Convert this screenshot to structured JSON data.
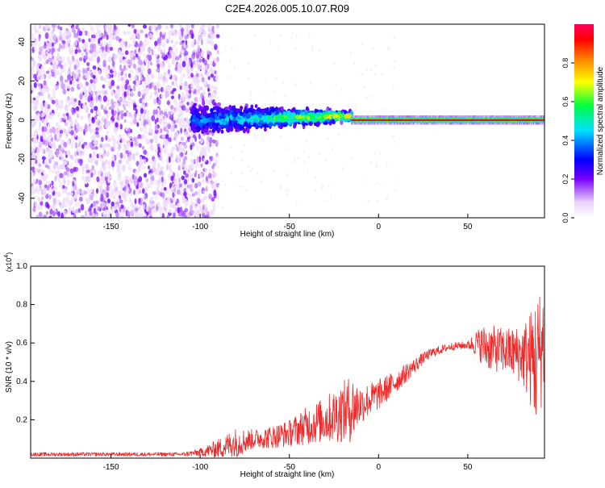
{
  "chart_data": [
    {
      "type": "heatmap",
      "title": "C2E4.2026.005.10.07.R09",
      "xlabel": "Height of straight line (km)",
      "ylabel": "Frequency (Hz)",
      "xlim": [
        -195,
        93
      ],
      "ylim": [
        -50,
        49
      ],
      "xticks": [
        -150,
        -100,
        -50,
        0,
        50
      ],
      "yticks": [
        -40,
        -20,
        0,
        20,
        40
      ],
      "xtick_labels": [
        "-150",
        "-100",
        "-50",
        "0",
        "50"
      ],
      "ytick_labels": [
        "-40",
        "-20",
        "0",
        "20",
        "40"
      ],
      "colorbar": {
        "label": "Normalized spectral amplitude",
        "range": [
          0,
          1
        ],
        "ticks": [
          0.0,
          0.2,
          0.4,
          0.6,
          0.8
        ],
        "tick_labels": [
          "0.0",
          "0.2",
          "0.4",
          "0.6",
          "0.8"
        ],
        "colormap": [
          "#ffffff",
          "#e9d3fb",
          "#7a00ff",
          "#0000ff",
          "#00e0ff",
          "#00ff40",
          "#ffff00",
          "#ff8000",
          "#ff0000",
          "#ff0060"
        ]
      },
      "features": [
        {
          "name": "scattered low-amplitude noise",
          "x_range": [
            -195,
            -90
          ],
          "freq_range": [
            -50,
            49
          ],
          "amplitude": 0.05
        },
        {
          "name": "broadening band",
          "x_range": [
            -105,
            -15
          ],
          "freq_center": [
            0,
            2
          ],
          "halfwidth": [
            10,
            3
          ],
          "amplitude": 0.4
        },
        {
          "name": "narrow carrier line",
          "x_range": [
            -15,
            93
          ],
          "freq_center": 0,
          "halfwidth": 1,
          "amplitude": 0.95
        }
      ]
    },
    {
      "type": "line",
      "xlabel": "Height of straight line (km)",
      "ylabel": "SNR (10 * v/v)",
      "multiplier_label": "(x10",
      "multiplier_exp": "4",
      "xlim": [
        -195,
        93
      ],
      "ylim": [
        0,
        1.0
      ],
      "xticks": [
        -150,
        -100,
        -50,
        0,
        50
      ],
      "yticks": [
        0.2,
        0.4,
        0.6,
        0.8,
        1.0
      ],
      "xtick_labels": [
        "-150",
        "-100",
        "-50",
        "0",
        "50"
      ],
      "ytick_labels": [
        "0.2",
        "0.4",
        "0.6",
        "0.8",
        "1.0"
      ],
      "color": "#ee2a2a",
      "trend": {
        "x": [
          -195,
          -110,
          -100,
          -90,
          -80,
          -70,
          -60,
          -50,
          -40,
          -30,
          -20,
          -15,
          -10,
          0,
          10,
          20,
          25,
          30,
          40,
          50,
          55,
          60,
          70,
          75,
          80,
          85,
          88,
          93
        ],
        "y": [
          0.02,
          0.02,
          0.03,
          0.05,
          0.08,
          0.1,
          0.11,
          0.13,
          0.17,
          0.2,
          0.24,
          0.26,
          0.28,
          0.33,
          0.4,
          0.48,
          0.52,
          0.55,
          0.58,
          0.59,
          0.6,
          0.58,
          0.56,
          0.55,
          0.54,
          0.52,
          0.5,
          0.62
        ]
      },
      "noise": {
        "x": [
          -195,
          -110,
          -100,
          -90,
          -80,
          -70,
          -50,
          -40,
          -30,
          -20,
          -15,
          -10,
          0,
          10,
          20,
          25,
          30,
          40,
          50,
          55,
          60,
          70,
          80,
          85,
          88,
          93
        ],
        "amplitude": [
          0.01,
          0.01,
          0.02,
          0.05,
          0.08,
          0.05,
          0.07,
          0.1,
          0.12,
          0.16,
          0.18,
          0.1,
          0.08,
          0.06,
          0.04,
          0.03,
          0.025,
          0.02,
          0.02,
          0.07,
          0.12,
          0.12,
          0.15,
          0.25,
          0.35,
          0.3
        ]
      }
    }
  ]
}
